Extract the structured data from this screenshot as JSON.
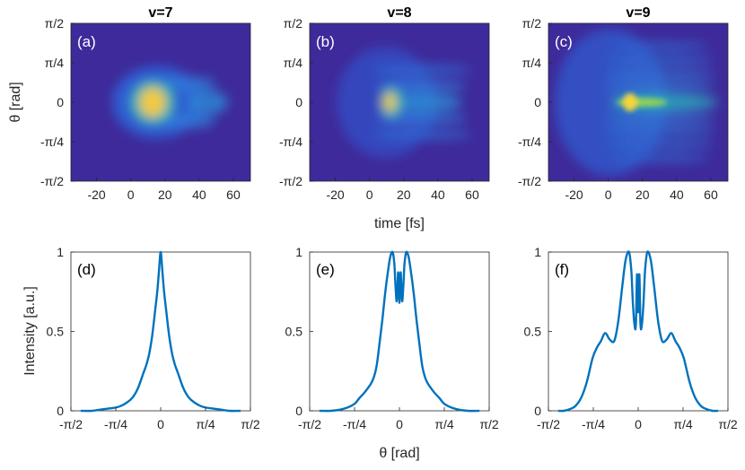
{
  "figure": {
    "xlabel_top": "time [fs]",
    "ylabel_top": "θ [rad]",
    "xlabel_bottom": "θ [rad]",
    "ylabel_bottom": "Intensity [a.u.]"
  },
  "chart_data": [
    {
      "type": "heatmap",
      "title": "v=7",
      "panel_label": "(a)",
      "xlabel": "time [fs]",
      "ylabel": "θ [rad]",
      "xlim": [
        -35,
        70
      ],
      "ylim_labels": [
        "π/2",
        "π/4",
        "0",
        "-π/4",
        "-π/2"
      ],
      "xticks": [
        "-20",
        "0",
        "20",
        "40",
        "60"
      ],
      "xtick_values": [
        -20,
        0,
        20,
        40,
        60
      ],
      "colormap": "parula",
      "features": {
        "main_blob_time_fs": 15,
        "stripes": 3,
        "extent_fs": 60
      }
    },
    {
      "type": "heatmap",
      "title": "v=8",
      "panel_label": "(b)",
      "xlabel": "time [fs]",
      "ylabel": "θ [rad]",
      "xlim": [
        -35,
        70
      ],
      "ylim_labels": [
        "π/2",
        "π/4",
        "0",
        "-π/4",
        "-π/2"
      ],
      "xticks": [
        "-20",
        "0",
        "20",
        "40",
        "60"
      ],
      "xtick_values": [
        -20,
        0,
        20,
        40,
        60
      ],
      "colormap": "parula",
      "features": {
        "main_blob_time_fs": 15,
        "stripes": 5,
        "extent_fs": 65
      }
    },
    {
      "type": "heatmap",
      "title": "v=9",
      "panel_label": "(c)",
      "xlabel": "time [fs]",
      "ylabel": "θ [rad]",
      "xlim": [
        -35,
        70
      ],
      "ylim_labels": [
        "π/2",
        "π/4",
        "0",
        "-π/4",
        "-π/2"
      ],
      "xticks": [
        "-20",
        "0",
        "20",
        "40",
        "60"
      ],
      "xtick_values": [
        -20,
        0,
        20,
        40,
        60
      ],
      "colormap": "parula",
      "features": {
        "main_blob_time_fs": 10,
        "stripes": 7,
        "extent_fs": 70
      }
    },
    {
      "type": "line",
      "panel_label": "(d)",
      "xlabel": "θ [rad]",
      "ylabel": "Intensity [a.u.]",
      "xlim": [
        -1.5708,
        1.5708
      ],
      "ylim": [
        0,
        1
      ],
      "xticks": [
        "-π/2",
        "-π/4",
        "0",
        "π/4",
        "π/2"
      ],
      "yticks": [
        "0",
        "0.5",
        "1"
      ],
      "series": [
        {
          "name": "v=7",
          "x": [
            -1.4,
            -1.2,
            -1.0,
            -0.8,
            -0.7,
            -0.6,
            -0.5,
            -0.4,
            -0.3,
            -0.25,
            -0.2,
            -0.15,
            -0.1,
            -0.06,
            -0.03,
            0.0,
            0.03,
            0.06,
            0.1,
            0.15,
            0.2,
            0.25,
            0.3,
            0.4,
            0.5,
            0.6,
            0.7,
            0.8,
            1.0,
            1.2,
            1.4
          ],
          "y": [
            0.0,
            0.0,
            0.01,
            0.02,
            0.03,
            0.05,
            0.08,
            0.14,
            0.24,
            0.29,
            0.36,
            0.47,
            0.62,
            0.75,
            0.88,
            1.0,
            0.88,
            0.75,
            0.62,
            0.47,
            0.36,
            0.29,
            0.24,
            0.14,
            0.08,
            0.05,
            0.03,
            0.02,
            0.01,
            0.0,
            0.0
          ]
        }
      ]
    },
    {
      "type": "line",
      "panel_label": "(e)",
      "xlabel": "θ [rad]",
      "ylabel": "Intensity [a.u.]",
      "xlim": [
        -1.5708,
        1.5708
      ],
      "ylim": [
        0,
        1
      ],
      "xticks": [
        "-π/2",
        "-π/4",
        "0",
        "π/4",
        "π/2"
      ],
      "yticks": [
        "0",
        "0.5",
        "1"
      ],
      "series": [
        {
          "name": "v=8",
          "x": [
            -1.4,
            -1.2,
            -1.0,
            -0.8,
            -0.7,
            -0.6,
            -0.5,
            -0.45,
            -0.4,
            -0.35,
            -0.3,
            -0.25,
            -0.2,
            -0.16,
            -0.12,
            -0.09,
            -0.07,
            -0.05,
            -0.035,
            -0.02,
            0.0,
            0.02,
            0.035,
            0.05,
            0.07,
            0.09,
            0.12,
            0.16,
            0.2,
            0.25,
            0.3,
            0.35,
            0.4,
            0.45,
            0.5,
            0.6,
            0.7,
            0.8,
            1.0,
            1.2,
            1.4
          ],
          "y": [
            0.0,
            0.0,
            0.01,
            0.04,
            0.08,
            0.12,
            0.17,
            0.21,
            0.28,
            0.42,
            0.57,
            0.74,
            0.88,
            0.97,
            1.0,
            0.93,
            0.8,
            0.69,
            0.78,
            0.87,
            0.68,
            0.87,
            0.78,
            0.69,
            0.8,
            0.93,
            1.0,
            0.97,
            0.88,
            0.74,
            0.57,
            0.42,
            0.28,
            0.21,
            0.17,
            0.12,
            0.08,
            0.04,
            0.01,
            0.0,
            0.0
          ]
        }
      ]
    },
    {
      "type": "line",
      "panel_label": "(f)",
      "xlabel": "θ [rad]",
      "ylabel": "Intensity [a.u.]",
      "xlim": [
        -1.5708,
        1.5708
      ],
      "ylim": [
        0,
        1
      ],
      "xticks": [
        "-π/2",
        "-π/4",
        "0",
        "π/4",
        "π/2"
      ],
      "yticks": [
        "0",
        "0.5",
        "1"
      ],
      "series": [
        {
          "name": "v=9",
          "x": [
            -1.4,
            -1.3,
            -1.2,
            -1.1,
            -1.0,
            -0.9,
            -0.8,
            -0.72,
            -0.65,
            -0.58,
            -0.5,
            -0.42,
            -0.35,
            -0.28,
            -0.22,
            -0.16,
            -0.12,
            -0.09,
            -0.06,
            -0.04,
            -0.02,
            0.0,
            0.02,
            0.04,
            0.06,
            0.09,
            0.12,
            0.16,
            0.22,
            0.28,
            0.35,
            0.42,
            0.5,
            0.58,
            0.65,
            0.72,
            0.8,
            0.9,
            1.0,
            1.1,
            1.2,
            1.3,
            1.4
          ],
          "y": [
            0.0,
            0.0,
            0.01,
            0.03,
            0.08,
            0.18,
            0.33,
            0.4,
            0.44,
            0.49,
            0.45,
            0.44,
            0.56,
            0.78,
            0.95,
            1.0,
            0.88,
            0.66,
            0.53,
            0.55,
            0.86,
            0.62,
            0.86,
            0.55,
            0.53,
            0.66,
            0.88,
            1.0,
            0.95,
            0.78,
            0.56,
            0.44,
            0.45,
            0.49,
            0.44,
            0.4,
            0.33,
            0.18,
            0.08,
            0.03,
            0.01,
            0.0,
            0.0
          ]
        }
      ]
    }
  ]
}
